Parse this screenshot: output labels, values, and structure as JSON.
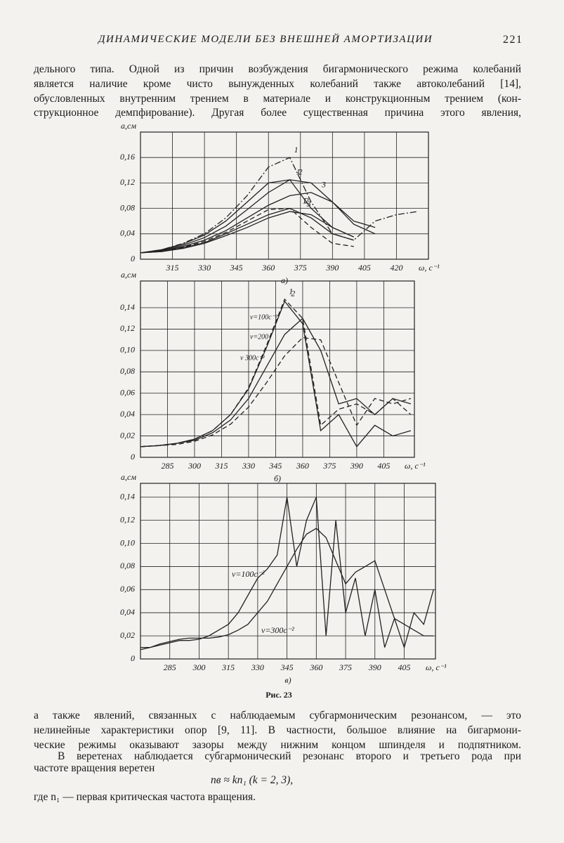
{
  "header": {
    "running_title": "ДИНАМИЧЕСКИЕ МОДЕЛИ БЕЗ ВНЕШНЕЙ АМОРТИЗАЦИИ",
    "page_number": "221"
  },
  "text_top": [
    "дельного типа. Одной из причин возбуждения бигармонического режима колебаний",
    "является наличие кроме чисто вынужденных колебаний также автоколебаний [14],",
    "обусловленных внутренним трением в материале и конструкционным трением (кон-",
    "струкционное демпфирование). Другая более существенная причина этого явления,"
  ],
  "chart_data": [
    {
      "type": "line",
      "panel_label": "а)",
      "y_label": "a,см",
      "x_label": "ω, с⁻¹",
      "color": "#222",
      "grid": true,
      "xlim": [
        300,
        435
      ],
      "ylim": [
        0,
        0.2
      ],
      "xticks": [
        315,
        330,
        345,
        360,
        375,
        390,
        405,
        420
      ],
      "yticks": [
        0,
        {
          "value": 0.04,
          "label": "0,04"
        },
        {
          "value": 0.08,
          "label": "0,08"
        },
        {
          "value": 0.12,
          "label": "0,12"
        },
        {
          "value": 0.16,
          "label": "0,16"
        }
      ],
      "x": [
        300,
        310,
        320,
        330,
        340,
        350,
        360,
        370,
        380,
        390,
        400,
        410,
        420,
        430
      ],
      "series": [
        {
          "name": "1",
          "dash": "dashdot",
          "values": [
            0.01,
            0.015,
            0.025,
            0.04,
            0.065,
            0.1,
            0.145,
            0.16,
            0.09,
            0.04,
            0.03,
            0.06,
            0.07,
            0.075
          ]
        },
        {
          "name": "1",
          "dash": "solid",
          "values": [
            0.01,
            0.015,
            0.024,
            0.038,
            0.06,
            0.09,
            0.12,
            0.125,
            0.08,
            0.05,
            0.035,
            null,
            null,
            null
          ]
        },
        {
          "name": "2",
          "dash": "solid",
          "values": [
            0.01,
            0.014,
            0.022,
            0.034,
            0.052,
            0.078,
            0.105,
            0.125,
            0.12,
            0.09,
            0.055,
            0.04,
            null,
            null
          ]
        },
        {
          "name": "3",
          "dash": "solid",
          "values": [
            0.01,
            0.013,
            0.02,
            0.03,
            0.045,
            0.065,
            0.085,
            0.1,
            0.105,
            0.09,
            0.06,
            0.05,
            null,
            null
          ]
        },
        {
          "name": "1",
          "dash": "dashed",
          "values": [
            0.01,
            0.013,
            0.019,
            0.028,
            0.042,
            0.06,
            0.078,
            0.08,
            0.05,
            0.025,
            0.02,
            null,
            null,
            null
          ]
        },
        {
          "name": "2",
          "dash": "solid",
          "values": [
            0.01,
            0.012,
            0.018,
            0.026,
            0.04,
            0.055,
            0.07,
            0.08,
            0.065,
            0.04,
            0.03,
            null,
            null,
            null
          ]
        },
        {
          "name": "3",
          "dash": "solid",
          "values": [
            0.01,
            0.012,
            0.017,
            0.025,
            0.037,
            0.05,
            0.065,
            0.075,
            0.07,
            0.05,
            0.035,
            null,
            null,
            null
          ]
        }
      ]
    },
    {
      "type": "line",
      "panel_label": "б)",
      "y_label": "a,см",
      "x_label": "ω, с⁻¹",
      "color": "#222",
      "grid": true,
      "xlim": [
        270,
        422
      ],
      "ylim": [
        0,
        0.165
      ],
      "xticks": [
        285,
        300,
        315,
        330,
        345,
        360,
        375,
        390,
        405
      ],
      "yticks": [
        0,
        {
          "value": 0.02,
          "label": "0,02"
        },
        {
          "value": 0.04,
          "label": "0,04"
        },
        {
          "value": 0.06,
          "label": "0,06"
        },
        {
          "value": 0.08,
          "label": "0,08"
        },
        {
          "value": 0.1,
          "label": "0,10"
        },
        {
          "value": 0.12,
          "label": "0,12"
        },
        {
          "value": 0.14,
          "label": "0,14"
        }
      ],
      "x": [
        270,
        280,
        290,
        300,
        310,
        320,
        330,
        340,
        350,
        360,
        370,
        380,
        390,
        400,
        410,
        420
      ],
      "series": [
        {
          "name": "1",
          "dash": "dashed",
          "values": [
            0.01,
            0.011,
            0.013,
            0.017,
            0.025,
            0.04,
            0.065,
            0.105,
            0.148,
            0.13,
            0.03,
            0.045,
            0.05,
            0.04,
            0.055,
            0.04
          ]
        },
        {
          "name": "2",
          "dash": "solid",
          "values": [
            0.01,
            0.011,
            0.013,
            0.017,
            0.025,
            0.04,
            0.064,
            0.103,
            0.146,
            0.125,
            0.025,
            0.04,
            0.01,
            0.03,
            0.02,
            0.025
          ]
        },
        {
          "dash": "solid",
          "values": [
            0.01,
            0.011,
            0.013,
            0.016,
            0.023,
            0.035,
            0.055,
            0.085,
            0.115,
            0.13,
            0.1,
            0.05,
            0.055,
            0.04,
            0.055,
            0.05
          ]
        },
        {
          "dash": "dashed",
          "values": [
            0.01,
            0.011,
            0.012,
            0.015,
            0.021,
            0.031,
            0.047,
            0.07,
            0.095,
            0.112,
            0.11,
            0.07,
            0.03,
            0.055,
            0.05,
            0.055
          ]
        }
      ],
      "annotations": [
        "ν=100с⁻²",
        "ν=200",
        "ν 300с⁻²"
      ]
    },
    {
      "type": "line",
      "panel_label": "в)",
      "y_label": "a,см",
      "x_label": "ω, с⁻¹",
      "color": "#222",
      "grid": true,
      "xlim": [
        270,
        421
      ],
      "ylim": [
        0,
        0.152
      ],
      "xticks": [
        285,
        300,
        315,
        330,
        345,
        360,
        375,
        390,
        405
      ],
      "yticks": [
        0,
        {
          "value": 0.02,
          "label": "0,02"
        },
        {
          "value": 0.04,
          "label": "0,04"
        },
        {
          "value": 0.06,
          "label": "0,06"
        },
        {
          "value": 0.08,
          "label": "0,08"
        },
        {
          "value": 0.1,
          "label": "0,10"
        },
        {
          "value": 0.12,
          "label": "0,12"
        },
        {
          "value": 0.14,
          "label": "0,14"
        }
      ],
      "x": [
        270,
        275,
        280,
        285,
        290,
        295,
        300,
        305,
        310,
        315,
        320,
        325,
        330,
        335,
        340,
        345,
        350,
        355,
        360,
        365,
        370,
        375,
        380,
        385,
        390,
        395,
        400,
        405,
        410,
        415,
        420
      ],
      "series": [
        {
          "name": "ν=100с⁻²",
          "dash": "solid",
          "values": [
            0.01,
            0.01,
            0.012,
            0.014,
            0.016,
            0.016,
            0.017,
            0.02,
            0.025,
            0.03,
            0.04,
            0.055,
            0.07,
            0.078,
            0.09,
            0.14,
            0.08,
            0.12,
            0.14,
            0.02,
            0.12,
            0.04,
            0.07,
            0.02,
            0.06,
            0.01,
            0.035,
            0.01,
            0.04,
            0.03,
            0.06
          ]
        },
        {
          "name": "ν=300с⁻²",
          "dash": "solid",
          "values": [
            0.008,
            0.01,
            0.013,
            0.015,
            0.017,
            0.018,
            0.018,
            0.018,
            0.019,
            0.021,
            0.025,
            0.03,
            0.04,
            0.05,
            0.065,
            0.08,
            0.095,
            0.108,
            0.113,
            0.105,
            0.085,
            0.065,
            0.075,
            0.08,
            0.085,
            0.06,
            0.035,
            0.03,
            0.025,
            0.02,
            0.02
          ]
        }
      ]
    }
  ],
  "figure_caption": "Рис. 23",
  "text_bottom": [
    "а также явлений, связанных с наблюдаемым субгармоническим резонансом, — это",
    "нелинейные характеристики опор [9, 11]. В частности, большое влияние на бигармони-",
    "ческие режимы оказывают зазоры между нижним концом шпинделя и подпятником.",
    "В веретенах наблюдается субгармонический резонанс второго и третьего рода при"
  ],
  "text_short": "частоте вращения веретен",
  "formula": "nв ≈ kn₁   (k = 2, 3),",
  "text_end": "где n₁ — первая критическая частота вращения."
}
